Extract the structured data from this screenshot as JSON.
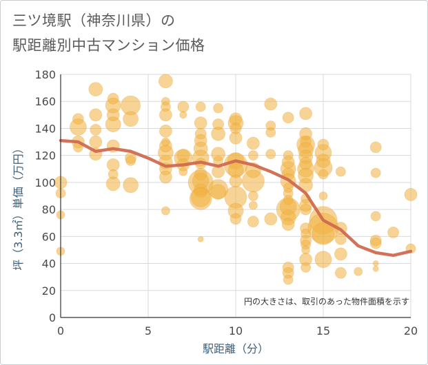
{
  "title_line1": "三ツ境駅（神奈川県）の",
  "title_line2": "駅距離別中古マンション価格",
  "chart_data": {
    "type": "scatter",
    "title": "三ツ境駅（神奈川県）の駅距離別中古マンション価格",
    "xlabel": "駅距離（分）",
    "ylabel": "坪（3.3㎡）単価（万円）",
    "xlim": [
      0,
      20
    ],
    "ylim": [
      0,
      180
    ],
    "xticks": [
      0,
      5,
      10,
      15,
      20
    ],
    "yticks": [
      0,
      20,
      40,
      60,
      80,
      100,
      120,
      140,
      160,
      180
    ],
    "grid": true,
    "annotation": "円の大きさは、取引のあった物件面積を示す",
    "bubble_color": "#f0b040",
    "trend_color": "#d06a50",
    "points": [
      [
        0,
        100,
        9
      ],
      [
        0,
        92,
        7
      ],
      [
        0,
        76,
        6
      ],
      [
        0,
        49,
        6
      ],
      [
        1,
        147,
        8
      ],
      [
        1,
        141,
        12
      ],
      [
        1,
        130,
        9
      ],
      [
        1,
        126,
        7
      ],
      [
        2,
        169,
        10
      ],
      [
        2,
        150,
        9
      ],
      [
        2,
        139,
        8
      ],
      [
        2,
        130,
        9
      ],
      [
        2,
        121,
        9
      ],
      [
        3,
        162,
        8
      ],
      [
        3,
        157,
        11
      ],
      [
        3,
        150,
        9
      ],
      [
        3,
        143,
        11
      ],
      [
        3,
        127,
        9
      ],
      [
        3,
        113,
        9
      ],
      [
        3,
        106,
        7
      ],
      [
        3,
        99,
        10
      ],
      [
        4,
        157,
        14
      ],
      [
        4,
        147,
        11
      ],
      [
        4,
        118,
        8
      ],
      [
        4,
        116,
        7
      ],
      [
        4,
        98,
        11
      ],
      [
        6,
        175,
        10
      ],
      [
        6,
        160,
        6
      ],
      [
        6,
        156,
        7
      ],
      [
        6,
        150,
        9
      ],
      [
        6,
        138,
        9
      ],
      [
        6,
        130,
        6
      ],
      [
        6,
        127,
        9
      ],
      [
        6,
        122,
        11
      ],
      [
        6,
        115,
        10
      ],
      [
        6,
        110,
        9
      ],
      [
        6,
        104,
        9
      ],
      [
        6,
        79,
        6
      ],
      [
        7,
        156,
        8
      ],
      [
        7,
        150,
        5
      ],
      [
        7,
        120,
        9
      ],
      [
        7,
        118,
        13
      ],
      [
        7,
        113,
        9
      ],
      [
        7,
        108,
        6
      ],
      [
        8,
        156,
        7
      ],
      [
        8,
        144,
        9
      ],
      [
        8,
        136,
        8
      ],
      [
        8,
        131,
        9
      ],
      [
        8,
        125,
        10
      ],
      [
        8,
        118,
        12
      ],
      [
        8,
        114,
        8
      ],
      [
        8,
        106,
        9
      ],
      [
        8,
        101,
        12
      ],
      [
        8,
        100,
        18
      ],
      [
        8,
        94,
        10
      ],
      [
        8,
        89,
        14
      ],
      [
        8,
        88,
        16
      ],
      [
        8,
        58,
        4
      ],
      [
        9,
        155,
        7
      ],
      [
        9,
        143,
        8
      ],
      [
        9,
        136,
        10
      ],
      [
        9,
        121,
        10
      ],
      [
        9,
        116,
        7
      ],
      [
        9,
        108,
        9
      ],
      [
        9,
        95,
        14
      ],
      [
        9,
        93,
        11
      ],
      [
        10,
        147,
        9
      ],
      [
        10,
        144,
        11
      ],
      [
        10,
        140,
        8
      ],
      [
        10,
        133,
        9
      ],
      [
        10,
        116,
        12
      ],
      [
        10,
        113,
        17
      ],
      [
        10,
        109,
        11
      ],
      [
        10,
        101,
        9
      ],
      [
        10,
        89,
        16
      ],
      [
        10,
        79,
        11
      ],
      [
        10,
        73,
        8
      ],
      [
        11,
        129,
        9
      ],
      [
        11,
        120,
        7
      ],
      [
        11,
        109,
        11
      ],
      [
        11,
        101,
        16
      ],
      [
        11,
        90,
        7
      ],
      [
        11,
        83,
        6
      ],
      [
        11,
        71,
        8
      ],
      [
        12,
        158,
        9
      ],
      [
        12,
        142,
        7
      ],
      [
        12,
        137,
        7
      ],
      [
        12,
        121,
        7
      ],
      [
        12,
        73,
        9
      ],
      [
        13,
        148,
        8
      ],
      [
        13,
        120,
        7
      ],
      [
        13,
        115,
        9
      ],
      [
        13,
        110,
        11
      ],
      [
        13,
        106,
        9
      ],
      [
        13,
        101,
        11
      ],
      [
        13,
        96,
        7
      ],
      [
        13,
        92,
        7
      ],
      [
        13,
        87,
        7
      ],
      [
        13,
        82,
        12
      ],
      [
        13,
        80,
        17
      ],
      [
        13,
        74,
        11
      ],
      [
        13,
        69,
        9
      ],
      [
        13,
        37,
        8
      ],
      [
        13,
        33,
        8
      ],
      [
        13,
        28,
        7
      ],
      [
        14,
        151,
        9
      ],
      [
        14,
        136,
        9
      ],
      [
        14,
        130,
        8
      ],
      [
        14,
        128,
        13
      ],
      [
        14,
        124,
        11
      ],
      [
        14,
        119,
        10
      ],
      [
        14,
        114,
        9
      ],
      [
        14,
        110,
        12
      ],
      [
        14,
        105,
        11
      ],
      [
        14,
        98,
        10
      ],
      [
        14,
        88,
        7
      ],
      [
        14,
        83,
        9
      ],
      [
        14,
        80,
        8
      ],
      [
        14,
        66,
        8
      ],
      [
        14,
        62,
        7
      ],
      [
        14,
        57,
        8
      ],
      [
        14,
        54,
        7
      ],
      [
        14,
        50,
        6
      ],
      [
        14,
        43,
        9
      ],
      [
        14,
        37,
        7
      ],
      [
        15,
        128,
        8
      ],
      [
        15,
        122,
        12
      ],
      [
        15,
        116,
        10
      ],
      [
        15,
        111,
        13
      ],
      [
        15,
        106,
        7
      ],
      [
        15,
        90,
        6
      ],
      [
        15,
        72,
        20
      ],
      [
        15,
        66,
        22
      ],
      [
        15,
        62,
        16
      ],
      [
        15,
        43,
        12
      ],
      [
        16,
        108,
        7
      ],
      [
        16,
        66,
        9
      ],
      [
        16,
        58,
        8
      ],
      [
        16,
        47,
        9
      ],
      [
        16,
        33,
        8
      ],
      [
        17,
        34,
        6
      ],
      [
        18,
        126,
        8
      ],
      [
        18,
        107,
        7
      ],
      [
        18,
        75,
        7
      ],
      [
        18,
        57,
        8
      ],
      [
        18,
        55,
        8
      ],
      [
        18,
        40,
        4
      ],
      [
        18,
        36,
        4
      ],
      [
        19,
        63,
        8
      ],
      [
        20,
        91,
        9
      ],
      [
        20,
        51,
        7
      ]
    ],
    "trend": {
      "x": [
        0,
        1,
        2,
        3,
        4,
        5,
        6,
        7,
        8,
        9,
        10,
        11,
        12,
        13,
        14,
        15,
        16,
        17,
        18,
        19,
        20
      ],
      "y": [
        131,
        130,
        123,
        125,
        123,
        118,
        112,
        113,
        115,
        112,
        116,
        113,
        108,
        102,
        92,
        72,
        65,
        53,
        48,
        46,
        49
      ]
    }
  }
}
